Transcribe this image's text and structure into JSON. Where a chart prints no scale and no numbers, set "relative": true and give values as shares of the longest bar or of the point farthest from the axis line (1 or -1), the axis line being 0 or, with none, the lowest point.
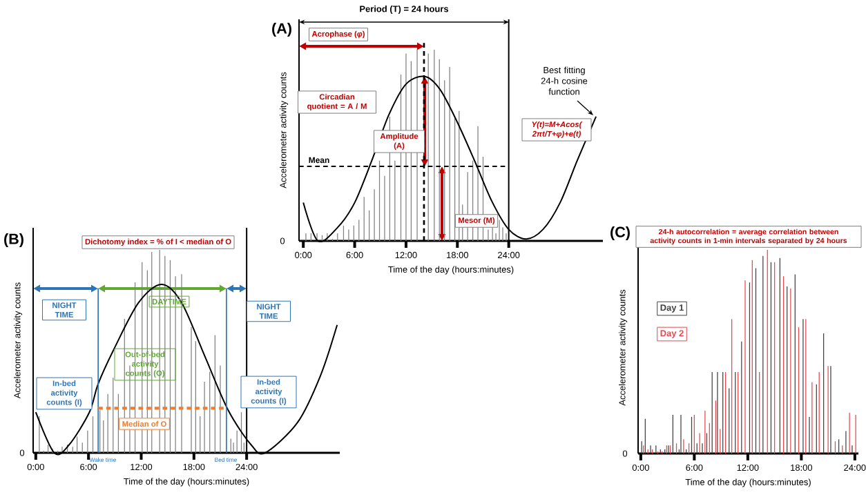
{
  "chart_data": [
    {
      "type": "bar",
      "title": "(A)",
      "xlabel": "Time of the day (hours:minutes)",
      "ylabel": "Accelerometer activity counts",
      "relative": true,
      "xlim": [
        -0.5,
        35
      ],
      "xticks": [
        {
          "value": 0,
          "label": "0:00"
        },
        {
          "value": 6,
          "label": "6:00"
        },
        {
          "value": 12,
          "label": "12:00"
        },
        {
          "value": 18,
          "label": "18:00"
        },
        {
          "value": 24,
          "label": "24:00"
        }
      ],
      "series": [
        {
          "type": "bar",
          "color": "#808080",
          "x": [
            0.3,
            0.9,
            1.6,
            2.2,
            2.8,
            3.4,
            4.0,
            4.7,
            5.3,
            5.9,
            6.5,
            7.1,
            7.7,
            8.3,
            8.9,
            9.5,
            10.1,
            10.7,
            11.4,
            12.0,
            12.6,
            13.3,
            14.6,
            15.3,
            15.9,
            16.5,
            17.1,
            17.7,
            18.2,
            18.6,
            19.2,
            19.8,
            20.4,
            21.0,
            21.6,
            22.1,
            22.5,
            22.9,
            23.3,
            23.7
          ],
          "values": [
            0.04,
            0.04,
            0.04,
            0.03,
            0.04,
            0.01,
            0.04,
            0.08,
            0.06,
            0.08,
            0.11,
            0.23,
            0.16,
            0.27,
            0.42,
            0.34,
            0.65,
            0.42,
            0.87,
            0.98,
            0.94,
            1.0,
            0.98,
            1.0,
            0.95,
            0.84,
            0.91,
            0.64,
            0.68,
            0.19,
            0.36,
            0.42,
            0.6,
            0.44,
            0.06,
            0.07,
            0.04,
            0.11,
            0.07,
            0.04
          ]
        },
        {
          "type": "line",
          "color": "#000000",
          "x": [
            0,
            1.7,
            4,
            6,
            8,
            10,
            12,
            14.2,
            16,
            18,
            20,
            22,
            24,
            26,
            28,
            30,
            32,
            34.2
          ],
          "values": [
            0.2,
            0,
            0.07,
            0.2,
            0.42,
            0.66,
            0.82,
            0.86,
            0.79,
            0.62,
            0.42,
            0.21,
            0.06,
            0.01,
            0.06,
            0.2,
            0.42,
            0.65
          ]
        }
      ],
      "ref_lines": [
        {
          "axis": "y",
          "value": 0.39,
          "label": "Mean",
          "color": "#000000",
          "line_style": "dashed"
        },
        {
          "axis": "x",
          "value": 14.1,
          "color": "#000000",
          "line_style": "dashed"
        },
        {
          "axis": "x",
          "value": 24,
          "color": "#000000"
        }
      ],
      "annotations": [
        "0",
        "Period (T) = 24 hours",
        "Acrophase (*φ*)",
        "Circadian quotient = A / M",
        "Amplitude (A)",
        "Mesor (M)",
        "Best fitting 24-h cosine function",
        "Y(t)=M+Acos( 2πt/T+φ)+e(t)"
      ]
    },
    {
      "type": "bar",
      "title": "(B)",
      "xlabel": "Time of the day (hours:minutes)",
      "ylabel": "Accelerometer activity counts",
      "relative": true,
      "xlim": [
        -0.3,
        34.6
      ],
      "xticks": [
        {
          "value": 0,
          "label": "0:00"
        },
        {
          "value": 6,
          "label": "6:00"
        },
        {
          "value": 12,
          "label": "12:00"
        },
        {
          "value": 18,
          "label": "18:00"
        },
        {
          "value": 24,
          "label": "24:00"
        }
      ],
      "series": [
        {
          "type": "bar",
          "color": "#808080",
          "x": [
            0.4,
            0.9,
            1.4,
            1.9,
            2.5,
            3.0,
            3.6,
            4.2,
            4.7,
            5.3,
            5.9,
            6.5,
            7.3,
            7.7,
            8.2,
            8.8,
            9.4,
            10.1,
            10.7,
            11.3,
            12.1,
            12.7,
            13.2,
            14.1,
            14.7,
            15.3,
            15.9,
            16.6,
            17.7,
            18.2,
            18.7,
            19.2,
            19.8,
            20.4,
            21.0,
            22.2,
            22.5,
            22.9,
            23.4,
            23.7
          ],
          "values": [
            0.18,
            0.01,
            0.04,
            0.02,
            0.01,
            0.03,
            0.04,
            0.03,
            0.08,
            0.05,
            0.11,
            0.18,
            0.21,
            0.16,
            0.29,
            0.37,
            0.29,
            0.66,
            0.43,
            0.84,
            0.94,
            0.9,
            0.99,
            1.0,
            0.97,
            0.95,
            0.87,
            0.88,
            0.62,
            0.55,
            0.18,
            0.35,
            0.4,
            0.58,
            0.43,
            0.07,
            0.05,
            0.11,
            0.2,
            0.05
          ]
        },
        {
          "type": "line",
          "color": "#000000",
          "x": [
            0,
            2.1,
            3.8,
            6.1,
            7.1,
            9.0,
            11.7,
            14.3,
            16.6,
            19.3,
            21.9,
            24.5,
            26.1,
            29.8,
            32.4,
            34.3
          ],
          "values": [
            0.2,
            0,
            0.04,
            0.2,
            0.34,
            0.52,
            0.74,
            0.83,
            0.74,
            0.47,
            0.21,
            0.04,
            0,
            0.15,
            0.38,
            0.63
          ]
        }
      ],
      "ref_lines": [
        {
          "axis": "x",
          "value": 7.1,
          "label": "Wake time",
          "color": "#2e75b6"
        },
        {
          "axis": "x",
          "value": 21.7,
          "label": "Bed time",
          "color": "#2e75b6"
        },
        {
          "axis": "x",
          "value": 24,
          "color": "#000000"
        },
        {
          "axis": "y",
          "value": 0.22,
          "label": "Median of O",
          "color": "#ed7d31",
          "line_style": "dashed"
        }
      ],
      "annotations": [
        "0",
        "Dichotomy index = % of I < median of O",
        "NIGHT TIME",
        "DAYTIME",
        "NIGHT TIME",
        "In-bed activity counts (I)",
        "Out-of-bed activity counts (O)",
        "In-bed activity counts (I)"
      ]
    },
    {
      "type": "bar",
      "title": "(C)",
      "xlabel": "Time of the day (hours:minutes)",
      "ylabel": "Accelerometer activity counts",
      "relative": true,
      "legend": "left",
      "xlim": [
        -0.3,
        24.4
      ],
      "xticks": [
        {
          "value": 0,
          "label": "0:00"
        },
        {
          "value": 6,
          "label": "6:00"
        },
        {
          "value": 12,
          "label": "12:00"
        },
        {
          "value": 18,
          "label": "18:00"
        },
        {
          "value": 24,
          "label": "24:00"
        }
      ],
      "series": [
        {
          "name": "Day 1",
          "color": "#404040",
          "x": [
            0.1,
            0.5,
            1.1,
            1.7,
            2.2,
            2.7,
            3.1,
            3.6,
            4.3,
            4.5,
            5.1,
            5.7,
            6.3,
            6.9,
            7.4,
            8.0,
            8.6,
            9.2,
            9.9,
            10.6,
            11.3,
            12.2,
            12.9,
            13.7,
            14.6,
            15.6,
            16.4,
            17.3,
            18.2,
            18.9,
            19.7,
            20.5,
            21.3,
            22.2,
            23.0,
            23.7
          ],
          "values": [
            0.06,
            0.17,
            0.04,
            0.04,
            0.02,
            0.02,
            0.04,
            0.19,
            0.02,
            0.19,
            0.02,
            0.18,
            0.05,
            0.05,
            0.1,
            0.4,
            0.4,
            0.4,
            0.32,
            0.4,
            0.55,
            0.84,
            0.91,
            0.97,
            0.94,
            0.96,
            0.82,
            0.88,
            0.66,
            0.18,
            0.34,
            0.59,
            0.43,
            0.07,
            0.11,
            0.04
          ]
        },
        {
          "name": "Day 2",
          "color": "#e8474f",
          "x": [
            0.3,
            0.8,
            1.3,
            1.9,
            2.4,
            2.9,
            3.3,
            4.0,
            4.8,
            5.4,
            6.0,
            6.6,
            7.2,
            7.7,
            8.4,
            8.9,
            9.5,
            10.2,
            10.9,
            11.7,
            12.5,
            13.3,
            14.2,
            15.0,
            16.0,
            16.8,
            17.7,
            18.5,
            19.2,
            20.0,
            21.0,
            21.8,
            22.6,
            23.4,
            24.1
          ],
          "values": [
            0.04,
            0.02,
            0.02,
            0.01,
            0.01,
            0.04,
            0.04,
            0.05,
            0.07,
            0.05,
            0.19,
            0.1,
            0.21,
            0.15,
            0.26,
            0.12,
            0.4,
            0.66,
            0.4,
            0.85,
            0.95,
            0.4,
            1.0,
            0.94,
            0.87,
            0.81,
            0.62,
            0.66,
            0.35,
            0.4,
            0.43,
            0.06,
            0.04,
            0.2,
            0.19
          ]
        }
      ],
      "annotations": [
        "0",
        "24-h autocorrelation = average correlation between activity counts in 1-min intervals separated by 24 hours"
      ]
    }
  ]
}
